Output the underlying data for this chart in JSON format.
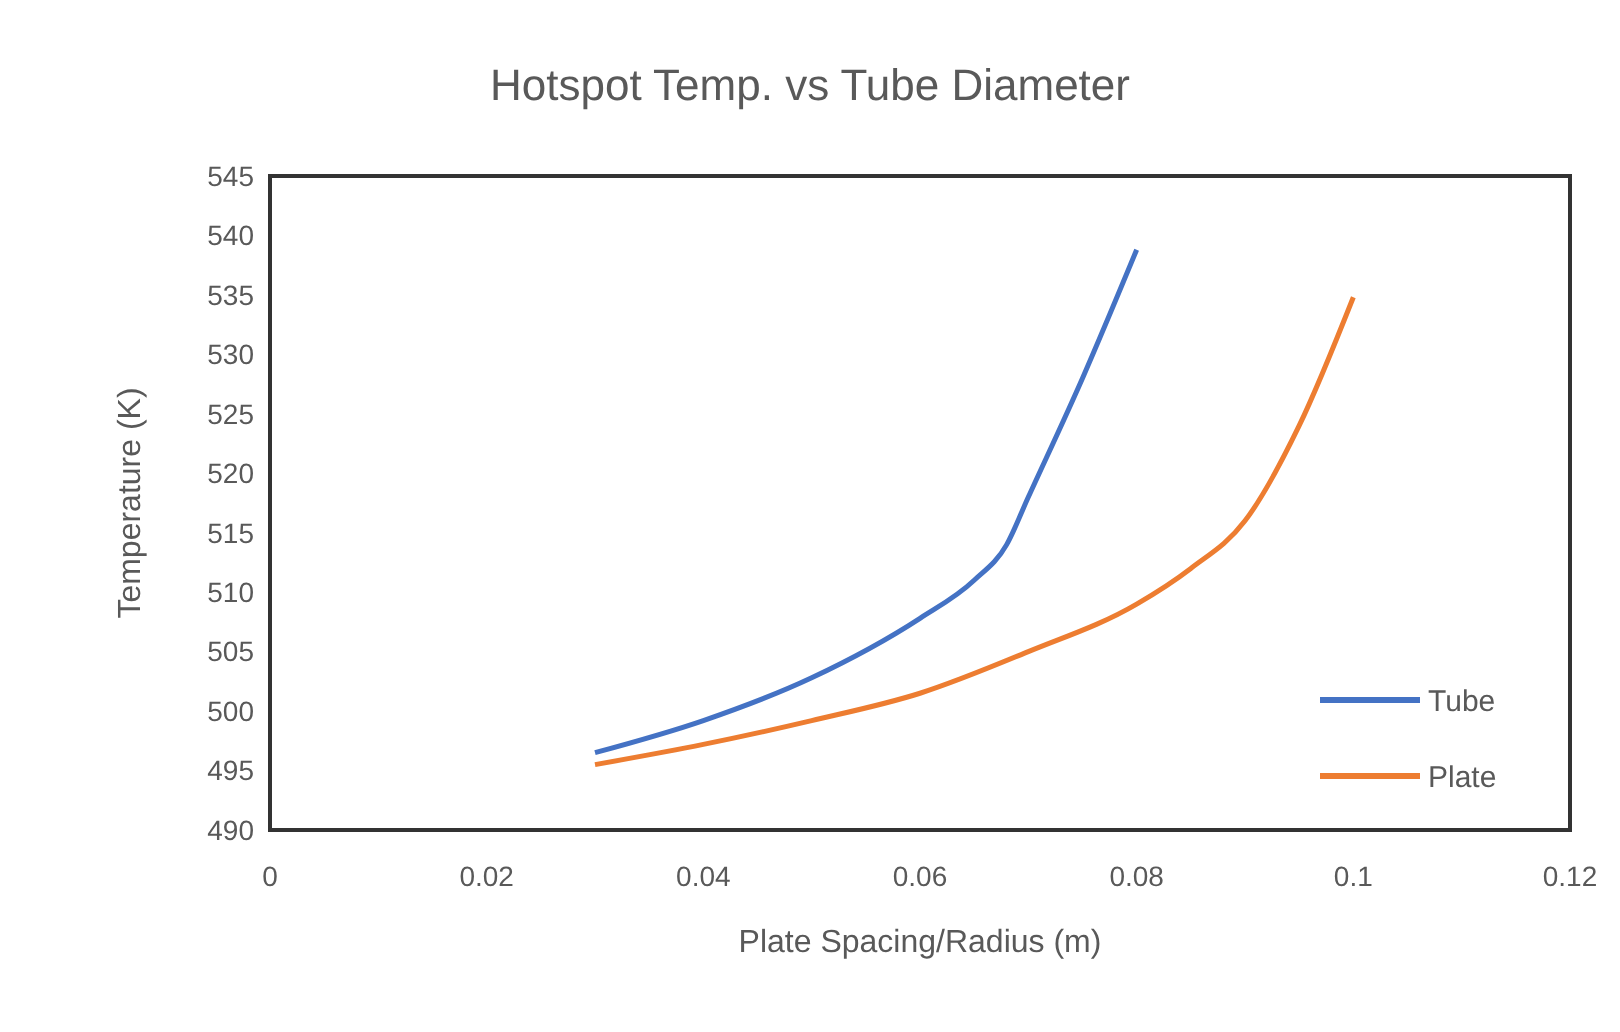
{
  "chart_data": {
    "type": "line",
    "title": "Hotspot Temp. vs Tube Diameter",
    "xlabel": "Plate Spacing/Radius (m)",
    "ylabel": "Temperature (K)",
    "xlim": [
      0,
      0.12
    ],
    "xticks": [
      0,
      0.02,
      0.04,
      0.06,
      0.08,
      0.1,
      0.12
    ],
    "ylim": [
      490,
      545
    ],
    "yticks": [
      490,
      495,
      500,
      505,
      510,
      515,
      520,
      525,
      530,
      535,
      540,
      545
    ],
    "grid": false,
    "legend": "bottom right",
    "marker": "none",
    "line_style": "solid",
    "series": [
      {
        "name": "Tube",
        "color": "#4472c4",
        "x": [
          0.03,
          0.04,
          0.05,
          0.06,
          0.065,
          0.068,
          0.07,
          0.075,
          0.08
        ],
        "values": [
          496.5,
          499.2,
          502.8,
          507.8,
          511,
          514,
          518,
          528,
          538.8
        ]
      },
      {
        "name": "Plate",
        "color": "#ed7d31",
        "x": [
          0.03,
          0.04,
          0.05,
          0.06,
          0.07,
          0.08,
          0.085,
          0.09,
          0.095,
          0.1
        ],
        "values": [
          495.5,
          497.2,
          499.2,
          501.5,
          505,
          509,
          512,
          516,
          524,
          534.8
        ]
      }
    ]
  }
}
